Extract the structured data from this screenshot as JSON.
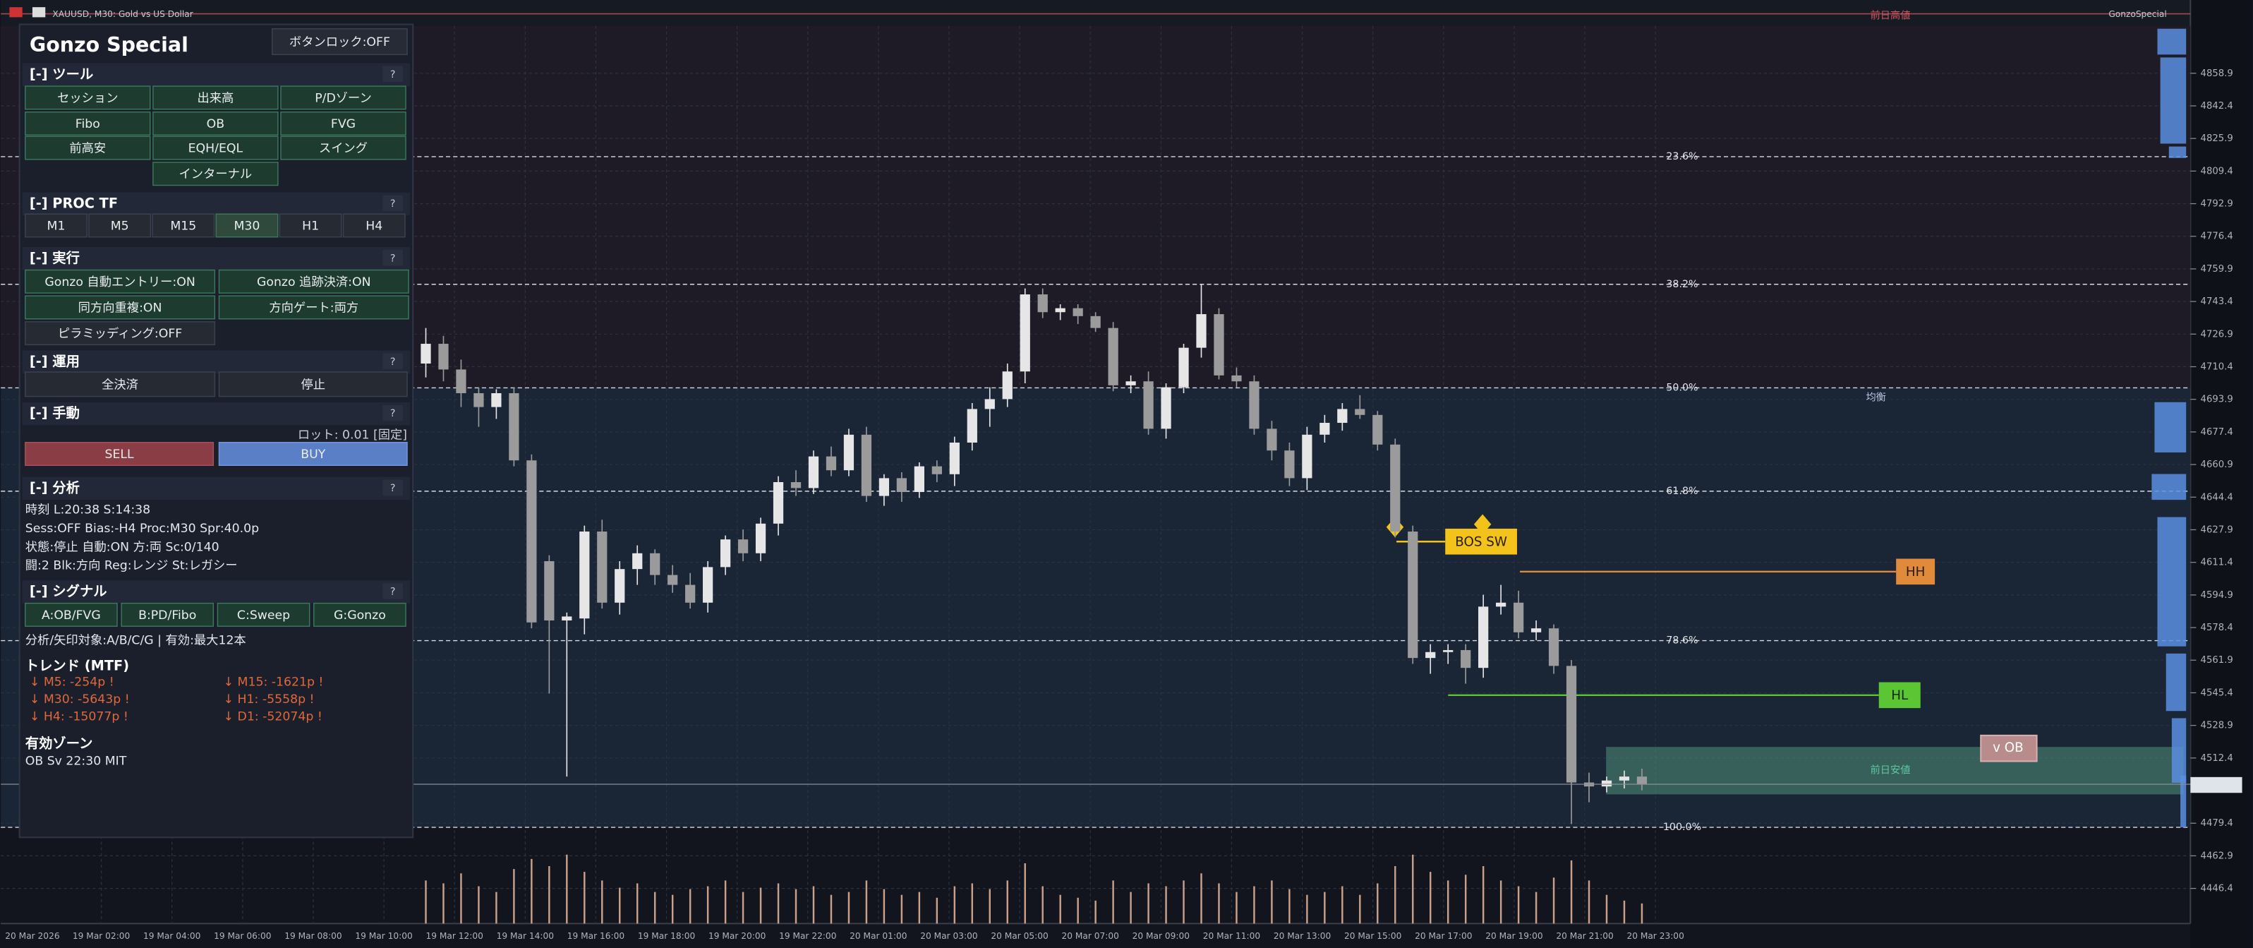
{
  "window": {
    "title": "XAUUSD, M30:  Gold vs US Dollar",
    "indicator": "GonzoSpecial"
  },
  "chart_data": {
    "type": "candlestick",
    "ylim": [
      4428.6,
      4890.2
    ],
    "yticks": [
      4858.9,
      4842.4,
      4825.9,
      4809.4,
      4792.9,
      4776.4,
      4759.9,
      4743.4,
      4726.9,
      4710.4,
      4693.9,
      4677.4,
      4660.9,
      4644.4,
      4627.9,
      4611.4,
      4594.9,
      4578.4,
      4561.9,
      4545.4,
      4528.9,
      4512.4,
      4479.4,
      4462.9,
      4446.4
    ],
    "time_labels": [
      "20 Mar 2026",
      "19 Mar 02:00",
      "19 Mar 04:00",
      "19 Mar 06:00",
      "19 Mar 08:00",
      "19 Mar 10:00",
      "19 Mar 12:00",
      "19 Mar 14:00",
      "19 Mar 16:00",
      "19 Mar 18:00",
      "19 Mar 20:00",
      "19 Mar 22:00",
      "20 Mar 01:00",
      "20 Mar 03:00",
      "20 Mar 05:00",
      "20 Mar 07:00",
      "20 Mar 09:00",
      "20 Mar 11:00",
      "20 Mar 13:00",
      "20 Mar 15:00",
      "20 Mar 17:00",
      "20 Mar 19:00",
      "20 Mar 21:00",
      "20 Mar 23:00"
    ],
    "candles": [
      [
        4712,
        4730,
        4705,
        4722
      ],
      [
        4722,
        4726,
        4703,
        4709
      ],
      [
        4709,
        4714,
        4690,
        4697
      ],
      [
        4697,
        4700,
        4680,
        4690
      ],
      [
        4690,
        4699,
        4684,
        4697
      ],
      [
        4697,
        4700,
        4660,
        4663
      ],
      [
        4663,
        4666,
        4578,
        4581
      ],
      [
        4612,
        4615,
        4545,
        4582
      ],
      [
        4582,
        4586,
        4503,
        4584
      ],
      [
        4583,
        4630,
        4575,
        4627
      ],
      [
        4627,
        4633,
        4588,
        4591
      ],
      [
        4591,
        4612,
        4585,
        4608
      ],
      [
        4608,
        4620,
        4600,
        4616
      ],
      [
        4616,
        4618,
        4600,
        4605
      ],
      [
        4605,
        4610,
        4596,
        4600
      ],
      [
        4600,
        4606,
        4588,
        4591
      ],
      [
        4591,
        4612,
        4586,
        4609
      ],
      [
        4609,
        4625,
        4605,
        4623
      ],
      [
        4623,
        4628,
        4612,
        4616
      ],
      [
        4616,
        4634,
        4612,
        4631
      ],
      [
        4631,
        4655,
        4625,
        4652
      ],
      [
        4652,
        4658,
        4645,
        4649
      ],
      [
        4649,
        4668,
        4646,
        4665
      ],
      [
        4665,
        4670,
        4655,
        4658
      ],
      [
        4658,
        4679,
        4655,
        4676
      ],
      [
        4676,
        4680,
        4642,
        4645
      ],
      [
        4645,
        4656,
        4640,
        4654
      ],
      [
        4654,
        4657,
        4642,
        4647
      ],
      [
        4647,
        4662,
        4644,
        4660
      ],
      [
        4660,
        4663,
        4652,
        4656
      ],
      [
        4656,
        4675,
        4650,
        4672
      ],
      [
        4672,
        4692,
        4668,
        4689
      ],
      [
        4689,
        4700,
        4680,
        4694
      ],
      [
        4694,
        4712,
        4690,
        4708
      ],
      [
        4708,
        4750,
        4702,
        4747
      ],
      [
        4747,
        4750,
        4735,
        4738
      ],
      [
        4738,
        4742,
        4734,
        4740
      ],
      [
        4740,
        4742,
        4732,
        4736
      ],
      [
        4736,
        4738,
        4728,
        4730
      ],
      [
        4730,
        4733,
        4698,
        4701
      ],
      [
        4701,
        4706,
        4697,
        4703
      ],
      [
        4703,
        4708,
        4676,
        4679
      ],
      [
        4679,
        4702,
        4674,
        4700
      ],
      [
        4700,
        4722,
        4697,
        4720
      ],
      [
        4720,
        4752,
        4715,
        4737
      ],
      [
        4737,
        4740,
        4704,
        4706
      ],
      [
        4706,
        4710,
        4700,
        4703
      ],
      [
        4703,
        4706,
        4676,
        4679
      ],
      [
        4679,
        4683,
        4663,
        4668
      ],
      [
        4668,
        4672,
        4650,
        4654
      ],
      [
        4654,
        4680,
        4648,
        4676
      ],
      [
        4676,
        4686,
        4672,
        4682
      ],
      [
        4682,
        4692,
        4678,
        4689
      ],
      [
        4689,
        4696,
        4684,
        4686
      ],
      [
        4686,
        4688,
        4668,
        4671
      ],
      [
        4671,
        4674,
        4624,
        4627
      ],
      [
        4627,
        4630,
        4560,
        4563
      ],
      [
        4563,
        4570,
        4555,
        4566
      ],
      [
        4566,
        4570,
        4560,
        4567
      ],
      [
        4567,
        4570,
        4550,
        4558
      ],
      [
        4558,
        4595,
        4553,
        4589
      ],
      [
        4589,
        4600,
        4585,
        4591
      ],
      [
        4591,
        4597,
        4573,
        4576
      ],
      [
        4576,
        4582,
        4572,
        4578
      ],
      [
        4578,
        4580,
        4555,
        4559
      ],
      [
        4559,
        4562,
        4479,
        4500
      ],
      [
        4500,
        4505,
        4490,
        4498
      ],
      [
        4498,
        4503,
        4495,
        4501
      ],
      [
        4501,
        4506,
        4497,
        4503
      ],
      [
        4503,
        4507,
        4496,
        4499
      ]
    ],
    "volumes": [
      30,
      28,
      35,
      26,
      22,
      38,
      45,
      40,
      48,
      36,
      30,
      25,
      28,
      22,
      20,
      24,
      26,
      30,
      22,
      25,
      28,
      24,
      26,
      20,
      22,
      30,
      24,
      20,
      22,
      18,
      26,
      28,
      24,
      30,
      42,
      26,
      20,
      18,
      16,
      30,
      22,
      28,
      26,
      30,
      35,
      28,
      22,
      26,
      30,
      24,
      20,
      22,
      26,
      20,
      28,
      40,
      48,
      36,
      30,
      34,
      40,
      30,
      26,
      22,
      32,
      44,
      30,
      20,
      16,
      14
    ],
    "bull_color": "#e6e6e6",
    "bear_color": "#9b9b9b",
    "volume_color": "#c9a08a",
    "grid": true,
    "fibo": [
      {
        "label": "23.6%",
        "price": 4816.7
      },
      {
        "label": "38.2%",
        "price": 4752.1
      },
      {
        "label": "50.0%",
        "price": 4699.7
      },
      {
        "label": "61.8%",
        "price": 4647.4
      },
      {
        "label": "78.6%",
        "price": 4571.8
      },
      {
        "label": "100.0%",
        "price": 4477.3
      }
    ],
    "annotations": {
      "prev_high": {
        "label": "前日高値",
        "price": 4889.0
      },
      "equilibrium": {
        "label": "均衡"
      },
      "bos": {
        "label": "BOS SW",
        "price": 4621.9
      },
      "hh": {
        "label": "HH",
        "price": 4606.7
      },
      "hl": {
        "label": "HL",
        "price": 4544.2
      },
      "ob": {
        "label": "v OB"
      },
      "prev_low": {
        "label": "前日安値",
        "top": 4518.0,
        "bottom": 4494.0
      }
    }
  },
  "panel": {
    "title": "Gonzo Special",
    "lock_button": "ボタンロック:OFF",
    "help": "?",
    "tools": {
      "title": "[-] ツール",
      "buttons": [
        "セッション",
        "出来高",
        "P/Dゾーン",
        "Fibo",
        "OB",
        "FVG",
        "前高安",
        "EQH/EQL",
        "スイング",
        "インターナル"
      ]
    },
    "proc_tf": {
      "title": "[-] PROC TF",
      "buttons": [
        "M1",
        "M5",
        "M15",
        "M30",
        "H1",
        "H4"
      ],
      "active_index": 3
    },
    "execution": {
      "title": "[-] 実行",
      "buttons": [
        "Gonzo 自動エントリー:ON",
        "Gonzo 追跡決済:ON",
        "同方向重複:ON",
        "方向ゲート:両方",
        "ピラミッディング:OFF"
      ]
    },
    "operation": {
      "title": "[-] 運用",
      "buttons": [
        "全決済",
        "停止"
      ]
    },
    "manual": {
      "title": "[-] 手動",
      "lot": "ロット: 0.01 [固定]",
      "sell": "SELL",
      "buy": "BUY"
    },
    "analysis": {
      "title": "[-] 分析",
      "lines": [
        "時刻 L:20:38  S:14:38",
        "Sess:OFF  Bias:-H4  Proc:M30  Spr:40.0p",
        "状態:停止  自動:ON  方:両  Sc:0/140",
        "闘:2  Blk:方向  Reg:レンジ  St:レガシー"
      ]
    },
    "signal": {
      "title": "[-] シグナル",
      "buttons": [
        "A:OB/FVG",
        "B:PD/Fibo",
        "C:Sweep",
        "G:Gonzo"
      ],
      "target": "分析/矢印対象:A/B/C/G | 有効:最大12本"
    },
    "trend": {
      "title": "トレンド (MTF)",
      "items": [
        "↓ M5: -254p !",
        "↓ M15: -1621p !",
        "↓ M30: -5643p !",
        "↓ H1: -5558p !",
        "↓ H4: -15077p !",
        "↓ D1: -52074p !"
      ]
    },
    "zone": {
      "title": "有効ゾーン",
      "lines": [
        "OB Sv 22:30 MIT"
      ]
    }
  }
}
